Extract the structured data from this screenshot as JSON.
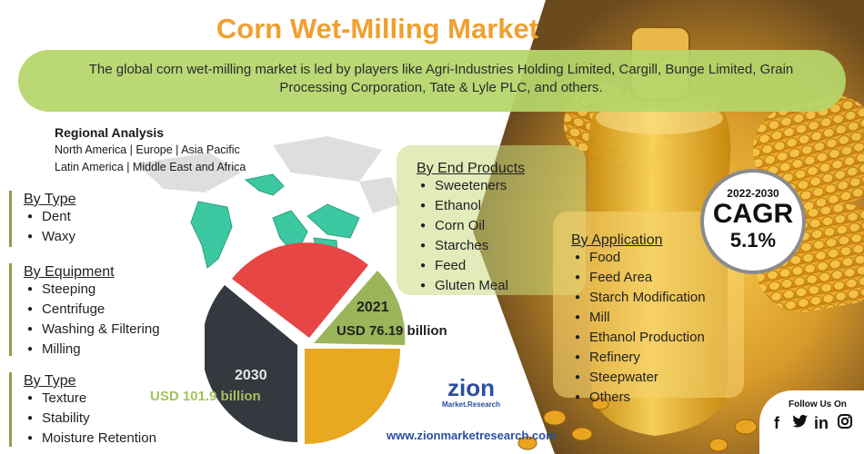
{
  "title": "Corn Wet-Milling Market",
  "summary": "The global corn wet-milling market is led by players like Agri-Industries Holding Limited, Cargill, Bunge Limited, Grain Processing Corporation, Tate & Lyle PLC, and others.",
  "regional": {
    "title": "Regional Analysis",
    "line1": "North America | Europe | Asia Pacific",
    "line2": "Latin America | Middle East and Africa"
  },
  "segments": [
    {
      "title": "By Type",
      "items": [
        "Dent",
        "Waxy"
      ]
    },
    {
      "title": "By Equipment",
      "items": [
        "Steeping",
        "Centrifuge",
        "Washing & Filtering",
        "Milling"
      ]
    },
    {
      "title": "By Type",
      "items": [
        "Texture",
        "Stability",
        "Moisture Retention"
      ]
    }
  ],
  "end_products": {
    "title": "By End Products",
    "items": [
      "Sweeteners",
      "Ethanol",
      "Corn Oil",
      "Starches",
      "Feed",
      "Gluten Meal"
    ]
  },
  "application": {
    "title": "By Application",
    "items": [
      "Food",
      "Feed Area",
      "Starch Modification",
      "Mill",
      "Ethanol Production",
      "Refinery",
      "Steepwater",
      "Others"
    ]
  },
  "cagr": {
    "years": "2022-2030",
    "label": "CAGR",
    "value": "5.1%"
  },
  "market": {
    "y2021": {
      "year": "2021",
      "value": "USD 76.19 billion"
    },
    "y2030": {
      "year": "2030",
      "value": "USD 101.9 billion"
    }
  },
  "brand": {
    "logo": "zion",
    "logo_sub": "Market.Research",
    "url": "www.zionmarketresearch.com"
  },
  "follow": {
    "title": "Follow Us On",
    "icons": [
      "facebook-icon",
      "twitter-icon",
      "linkedin-icon",
      "instagram-icon"
    ]
  },
  "colors": {
    "title": "#f0a030",
    "banner": "#b5d66b",
    "pie_red": "#e84545",
    "pie_green": "#9ab55a",
    "pie_yellow": "#e8a820",
    "pie_dark": "#34393f",
    "map": "#3cc8a0"
  }
}
